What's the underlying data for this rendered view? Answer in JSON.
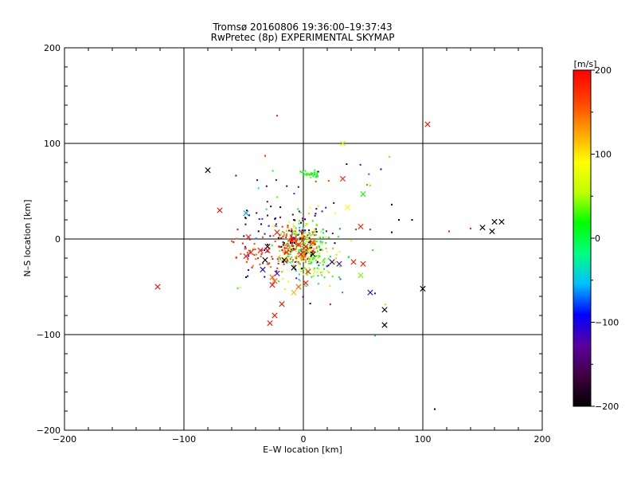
{
  "chart_data": {
    "type": "scatter",
    "title": "Tromsø 20160806 19:36:00–19:37:43",
    "subtitle": "RwPretec (8p) EXPERIMENTAL SKYMAP",
    "xlabel": "E–W location [km]",
    "ylabel": "N–S location [km]",
    "xlim": [
      -200,
      200
    ],
    "ylim": [
      -200,
      200
    ],
    "xticks": [
      -200,
      -100,
      0,
      100,
      200
    ],
    "yticks": [
      -200,
      -100,
      0,
      100,
      200
    ],
    "xtick_labels": [
      "−200",
      "−100",
      "0",
      "100",
      "200"
    ],
    "ytick_labels": [
      "−200",
      "−100",
      "0",
      "100",
      "200"
    ],
    "grid_lines": [
      -100,
      0,
      100
    ],
    "colorbar": {
      "label": "[m/s]",
      "range": [
        -200,
        200
      ],
      "ticks": [
        200,
        100,
        0,
        -100,
        -200
      ],
      "tick_labels": [
        "200",
        "100",
        "0",
        "−100",
        "−200"
      ],
      "colormap": [
        "#000000",
        "#400040",
        "#5a00a0",
        "#0000ff",
        "#00c0ff",
        "#00ff80",
        "#00ff00",
        "#c0ff00",
        "#ffff00",
        "#ffa000",
        "#ff4000",
        "#ff0000"
      ]
    },
    "series": [
      {
        "name": "cross markers (x, y km; velocity m/s)",
        "marker": "x",
        "points": [
          {
            "x": 104,
            "y": 120,
            "v": 190
          },
          {
            "x": 33,
            "y": 100,
            "v": 60
          },
          {
            "x": -80,
            "y": 72,
            "v": -200
          },
          {
            "x": 33,
            "y": 63,
            "v": 180
          },
          {
            "x": 50,
            "y": 47,
            "v": 20
          },
          {
            "x": 37,
            "y": 33,
            "v": 90
          },
          {
            "x": -70,
            "y": 30,
            "v": 190
          },
          {
            "x": -48,
            "y": 27,
            "v": -60
          },
          {
            "x": 160,
            "y": 18,
            "v": -200
          },
          {
            "x": 166,
            "y": 18,
            "v": -200
          },
          {
            "x": 150,
            "y": 12,
            "v": -200
          },
          {
            "x": 158,
            "y": 8,
            "v": -200
          },
          {
            "x": 48,
            "y": 13,
            "v": 180
          },
          {
            "x": -46,
            "y": 2,
            "v": 185
          },
          {
            "x": -22,
            "y": 7,
            "v": 185
          },
          {
            "x": -8,
            "y": 0,
            "v": 200
          },
          {
            "x": -4,
            "y": -6,
            "v": 180
          },
          {
            "x": 2,
            "y": -8,
            "v": 200
          },
          {
            "x": 8,
            "y": -4,
            "v": 170
          },
          {
            "x": -36,
            "y": -12,
            "v": 190
          },
          {
            "x": -44,
            "y": -14,
            "v": 190
          },
          {
            "x": -48,
            "y": -18,
            "v": 190
          },
          {
            "x": -30,
            "y": -8,
            "v": -180
          },
          {
            "x": -14,
            "y": -14,
            "v": 180
          },
          {
            "x": -2,
            "y": -16,
            "v": 190
          },
          {
            "x": 8,
            "y": -16,
            "v": -200
          },
          {
            "x": -16,
            "y": -22,
            "v": -200
          },
          {
            "x": -32,
            "y": -22,
            "v": -200
          },
          {
            "x": 24,
            "y": -24,
            "v": -180
          },
          {
            "x": 30,
            "y": -26,
            "v": -120
          },
          {
            "x": 42,
            "y": -24,
            "v": 190
          },
          {
            "x": 50,
            "y": -26,
            "v": 190
          },
          {
            "x": -34,
            "y": -32,
            "v": -90
          },
          {
            "x": -8,
            "y": -30,
            "v": -200
          },
          {
            "x": -22,
            "y": -36,
            "v": -120
          },
          {
            "x": 4,
            "y": -34,
            "v": 185
          },
          {
            "x": -26,
            "y": -40,
            "v": 150
          },
          {
            "x": -24,
            "y": -44,
            "v": 160
          },
          {
            "x": 2,
            "y": -46,
            "v": 190
          },
          {
            "x": -26,
            "y": -48,
            "v": 190
          },
          {
            "x": -4,
            "y": -50,
            "v": 150
          },
          {
            "x": 48,
            "y": -38,
            "v": 40
          },
          {
            "x": -122,
            "y": -50,
            "v": 190
          },
          {
            "x": 100,
            "y": -52,
            "v": -200
          },
          {
            "x": 56,
            "y": -56,
            "v": -110
          },
          {
            "x": -8,
            "y": -56,
            "v": 120
          },
          {
            "x": -18,
            "y": -68,
            "v": 190
          },
          {
            "x": 68,
            "y": -74,
            "v": -200
          },
          {
            "x": -24,
            "y": -80,
            "v": 190
          },
          {
            "x": -28,
            "y": -88,
            "v": 190
          },
          {
            "x": 68,
            "y": -90,
            "v": -200
          },
          {
            "x": -30,
            "y": -12,
            "v": 190
          },
          {
            "x": 0,
            "y": -20,
            "v": 150
          }
        ]
      }
    ]
  }
}
